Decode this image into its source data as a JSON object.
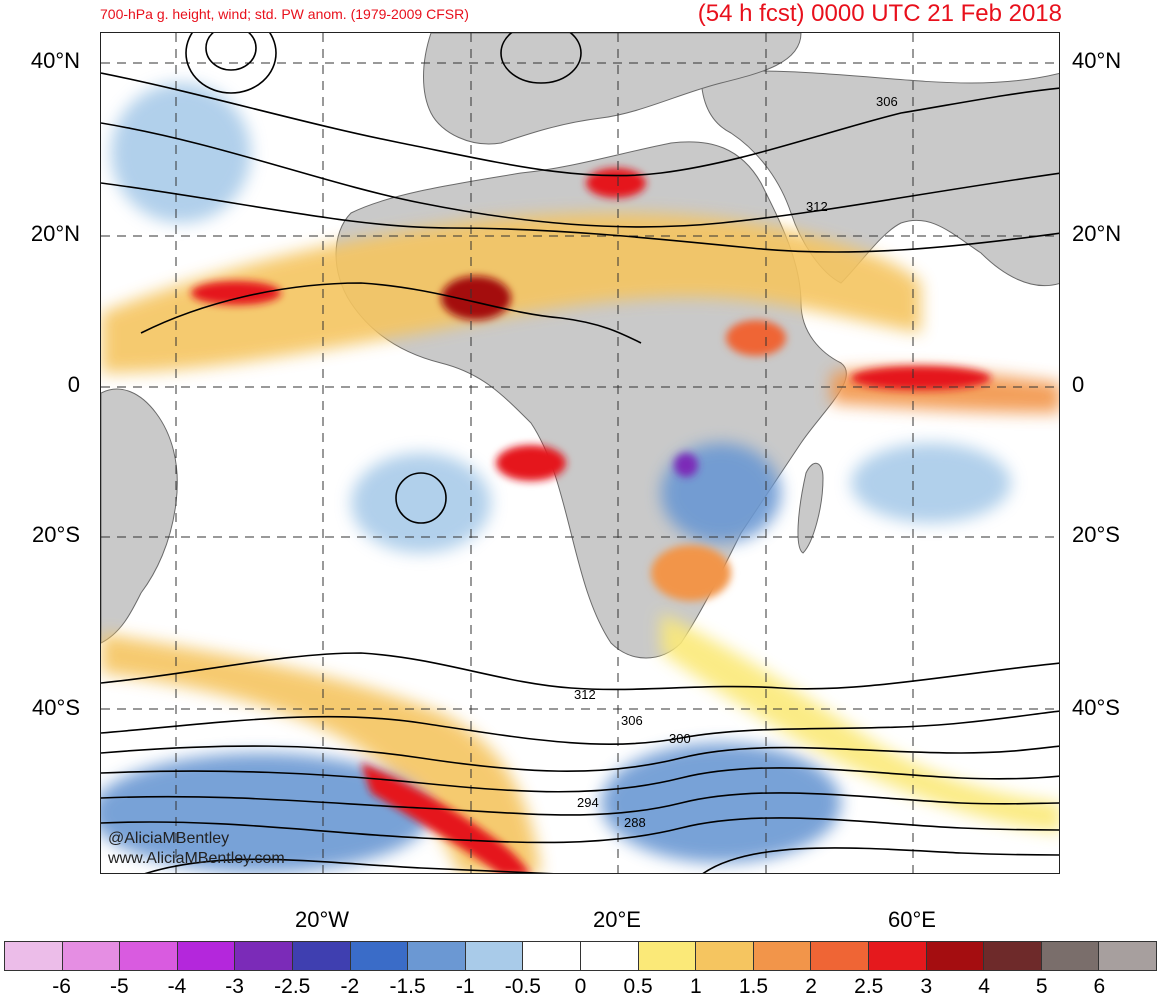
{
  "title": {
    "left": "700-hPa g. height, wind; std. PW anom. (1979-2009 CFSR)",
    "right": "(54 h fcst) 0000 UTC 21 Feb 2018"
  },
  "lat_labels": [
    "40°N",
    "20°N",
    "0",
    "20°S",
    "40°S"
  ],
  "lon_labels": [
    "20°W",
    "20°E",
    "60°E"
  ],
  "contour_labels": [
    "306",
    "312",
    "312",
    "306",
    "300",
    "294",
    "288"
  ],
  "colorbar": {
    "colors": [
      "#ecbde9",
      "#e58ee3",
      "#d95be0",
      "#b427dc",
      "#7b2bb8",
      "#3f3fb0",
      "#3a6cc8",
      "#6b98d3",
      "#a9cbe9",
      "#ffffff",
      "#ffffff",
      "#fbe978",
      "#f5c560",
      "#f2954a",
      "#ef6535",
      "#e5191d",
      "#a40d10",
      "#6e2a2a",
      "#7a6e6b",
      "#a79f9e"
    ],
    "labels": [
      "-6",
      "-5",
      "-4",
      "-3",
      "-2.5",
      "-2",
      "-1.5",
      "-1",
      "-0.5",
      "0",
      "0.5",
      "1",
      "1.5",
      "2",
      "2.5",
      "3",
      "4",
      "5",
      "6"
    ]
  },
  "credit": {
    "handle": "@AliciaMBentley",
    "site": "www.AliciaMBentley.com"
  }
}
